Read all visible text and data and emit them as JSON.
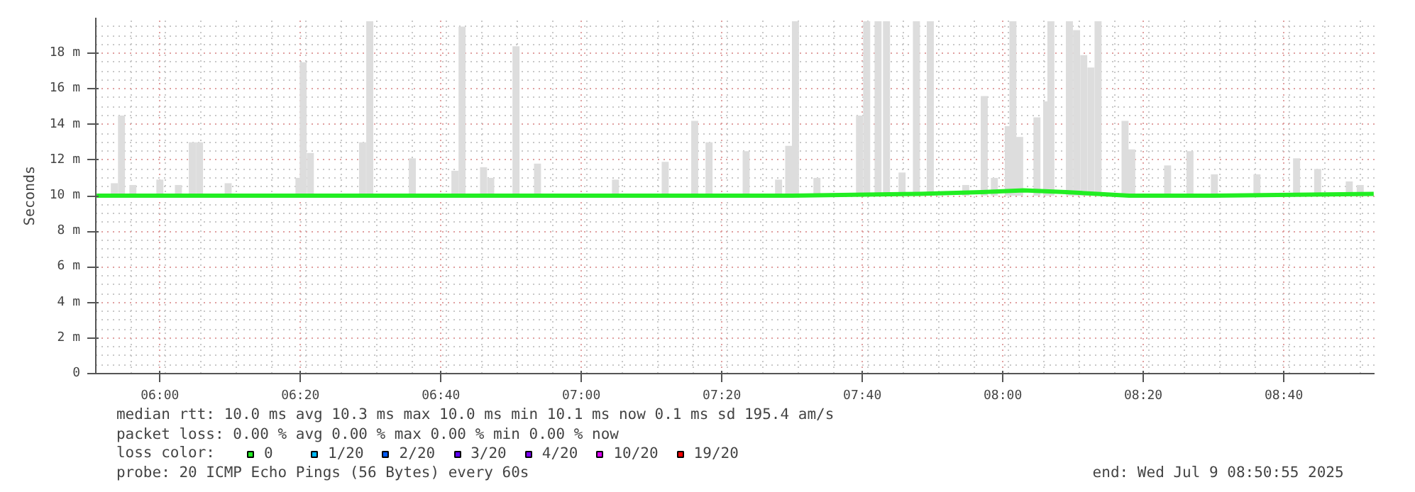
{
  "chart_data": {
    "type": "bar",
    "ylabel": "Seconds",
    "xlim": [
      5.848,
      8.882
    ],
    "xticks": [
      {
        "value": 6,
        "label": "06:00"
      },
      {
        "value": 6.3333,
        "label": "06:20"
      },
      {
        "value": 6.6667,
        "label": "06:40"
      },
      {
        "value": 7,
        "label": "07:00"
      },
      {
        "value": 7.3333,
        "label": "07:20"
      },
      {
        "value": 7.6667,
        "label": "07:40"
      },
      {
        "value": 8,
        "label": "08:00"
      },
      {
        "value": 8.3333,
        "label": "08:20"
      },
      {
        "value": 8.6667,
        "label": "08:40"
      }
    ],
    "ylim": [
      0,
      20
    ],
    "yticks": [
      0,
      {
        "value": 2,
        "label": "2 m"
      },
      {
        "value": 4,
        "label": "4 m"
      },
      {
        "value": 6,
        "label": "6 m"
      },
      {
        "value": 8,
        "label": "8 m"
      },
      {
        "value": 10,
        "label": "10 m"
      },
      {
        "value": 12,
        "label": "12 m"
      },
      {
        "value": 14,
        "label": "14 m"
      },
      {
        "value": 16,
        "label": "16 m"
      },
      {
        "value": 18,
        "label": "18 m"
      }
    ],
    "grid": true,
    "legend": "bottom",
    "legend_title": "loss color:",
    "series": [
      {
        "color": "#dddddd",
        "base": [
          10,
          10,
          10,
          10,
          10,
          10,
          10,
          10,
          10,
          10,
          10,
          10,
          10,
          10,
          10,
          10,
          10,
          10,
          10,
          10,
          10,
          10,
          10,
          10,
          10,
          10,
          10,
          10,
          10,
          10,
          10,
          10,
          10,
          10,
          10,
          10,
          10,
          10,
          10,
          10,
          10,
          10,
          10,
          10,
          10,
          10,
          10,
          10,
          10,
          10,
          10,
          10,
          10,
          10,
          10,
          10,
          10,
          10,
          10,
          10
        ],
        "x": [
          5.892,
          5.909,
          5.936,
          6.0,
          6.044,
          6.077,
          6.094,
          6.162,
          6.33,
          6.34,
          6.357,
          6.481,
          6.498,
          6.599,
          6.7,
          6.717,
          6.768,
          6.785,
          6.845,
          6.896,
          7.081,
          7.199,
          7.269,
          7.303,
          7.391,
          7.468,
          7.492,
          7.508,
          7.559,
          7.66,
          7.677,
          7.704,
          7.724,
          7.761,
          7.795,
          7.828,
          7.912,
          7.956,
          7.98,
          8.013,
          8.024,
          8.04,
          8.081,
          8.104,
          8.114,
          8.158,
          8.175,
          8.192,
          8.209,
          8.226,
          8.29,
          8.306,
          8.391,
          8.444,
          8.502,
          8.603,
          8.697,
          8.747,
          8.822,
          8.848
        ],
        "values": [
          0.7,
          4.5,
          0.6,
          0.9,
          0.6,
          3.0,
          3.0,
          0.7,
          1.0,
          7.5,
          2.4,
          3.0,
          9.8,
          2.1,
          1.4,
          9.5,
          1.6,
          1.0,
          8.4,
          1.8,
          0.9,
          1.9,
          4.2,
          3.0,
          2.5,
          0.9,
          2.8,
          9.8,
          1.0,
          4.5,
          9.8,
          9.8,
          9.8,
          1.3,
          9.8,
          9.8,
          0.6,
          5.6,
          1.0,
          3.9,
          9.8,
          3.3,
          4.4,
          5.3,
          9.8,
          9.8,
          9.3,
          7.9,
          7.2,
          9.8,
          4.2,
          2.6,
          1.7,
          2.5,
          1.2,
          1.2,
          2.1,
          1.5,
          0.8,
          0.6
        ]
      },
      {
        "type": "line",
        "name": "0",
        "color": "#22ee22",
        "x": [
          5.85,
          6.5,
          7.0,
          7.5,
          7.8,
          7.95,
          8.05,
          8.15,
          8.3,
          8.5,
          8.88
        ],
        "values": [
          10.0,
          10.0,
          10.0,
          10.0,
          10.1,
          10.2,
          10.3,
          10.2,
          10.0,
          10.0,
          10.1
        ]
      },
      {
        "type": "line",
        "name": "1/20",
        "color": "#00b8ff"
      },
      {
        "type": "line",
        "name": "2/20",
        "color": "#0059ff"
      },
      {
        "type": "line",
        "name": "3/20",
        "color": "#5e00ff"
      },
      {
        "type": "line",
        "name": "4/20",
        "color": "#7e00ff"
      },
      {
        "type": "line",
        "name": "10/20",
        "color": "#dd00ff"
      },
      {
        "type": "line",
        "name": "19/20",
        "color": "#ff0000"
      }
    ],
    "annotations": [
      "median rtt:  10.0 ms avg  10.3 ms max  10.0 ms min  10.1 ms now  0.1 ms sd  195.4   am/s",
      "packet loss: 0.00 % avg  0.00 % max  0.00 % min  0.00 % now",
      "probe:       20 ICMP Echo Pings (56 Bytes) every 60s",
      "end: Wed Jul  9 08:50:55 2025"
    ]
  }
}
